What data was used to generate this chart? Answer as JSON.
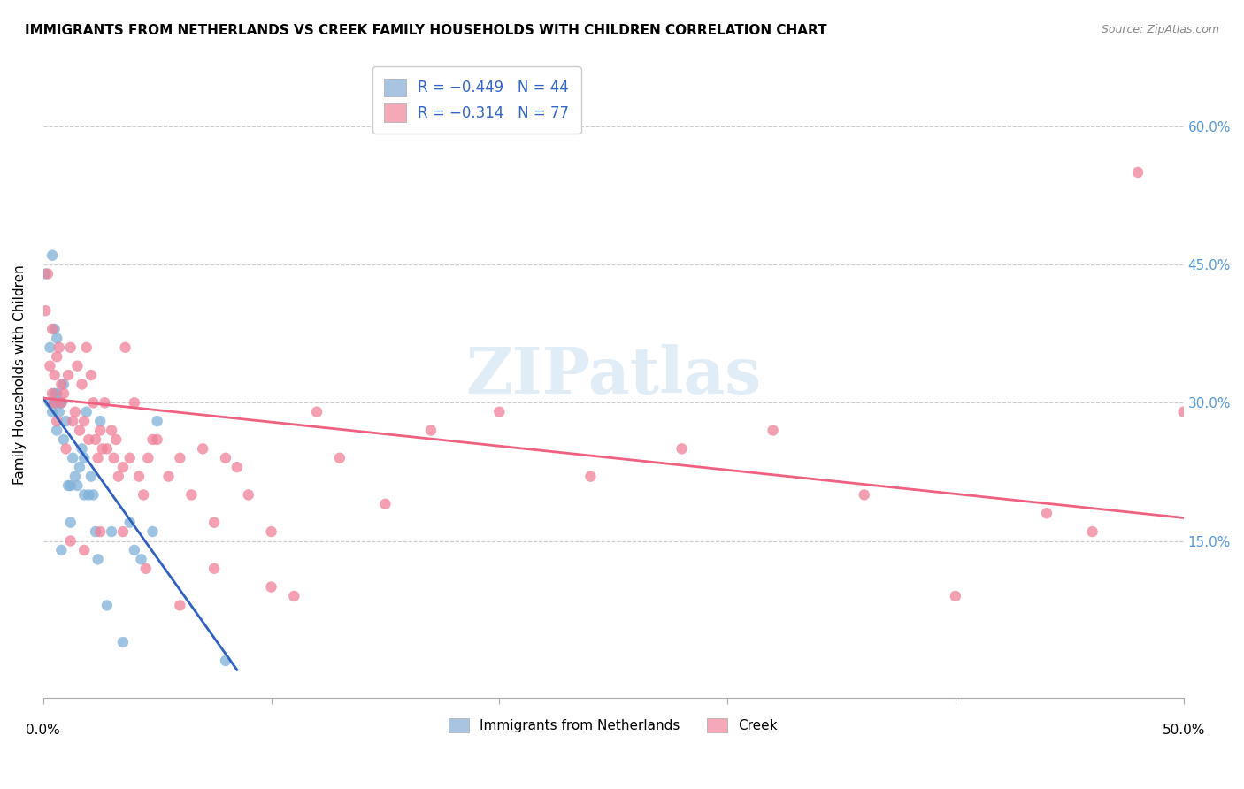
{
  "title": "IMMIGRANTS FROM NETHERLANDS VS CREEK FAMILY HOUSEHOLDS WITH CHILDREN CORRELATION CHART",
  "source": "Source: ZipAtlas.com",
  "ylabel": "Family Households with Children",
  "right_yticks": [
    "60.0%",
    "45.0%",
    "30.0%",
    "15.0%"
  ],
  "right_ytick_vals": [
    0.6,
    0.45,
    0.3,
    0.15
  ],
  "xlim": [
    0.0,
    0.5
  ],
  "ylim": [
    -0.02,
    0.68
  ],
  "legend_blue_label": "R = −0.449   N = 44",
  "legend_pink_label": "R = −0.314   N = 77",
  "legend_blue_color": "#a8c4e0",
  "legend_pink_color": "#f4a8b8",
  "scatter_blue_color": "#7fb0d8",
  "scatter_pink_color": "#f08098",
  "trend_blue_color": "#3060c0",
  "trend_pink_color": "#f06080",
  "watermark": "ZIPatlas",
  "bottom_legend_blue": "Immigrants from Netherlands",
  "bottom_legend_pink": "Creek",
  "blue_points_x": [
    0.001,
    0.003,
    0.003,
    0.004,
    0.004,
    0.005,
    0.005,
    0.005,
    0.006,
    0.006,
    0.006,
    0.007,
    0.007,
    0.008,
    0.008,
    0.009,
    0.009,
    0.01,
    0.011,
    0.012,
    0.012,
    0.013,
    0.014,
    0.015,
    0.016,
    0.017,
    0.018,
    0.018,
    0.019,
    0.02,
    0.021,
    0.022,
    0.023,
    0.024,
    0.025,
    0.028,
    0.03,
    0.035,
    0.038,
    0.04,
    0.043,
    0.048,
    0.05,
    0.08
  ],
  "blue_points_y": [
    0.44,
    0.3,
    0.36,
    0.29,
    0.46,
    0.3,
    0.31,
    0.38,
    0.37,
    0.27,
    0.31,
    0.3,
    0.29,
    0.14,
    0.3,
    0.32,
    0.26,
    0.28,
    0.21,
    0.21,
    0.17,
    0.24,
    0.22,
    0.21,
    0.23,
    0.25,
    0.2,
    0.24,
    0.29,
    0.2,
    0.22,
    0.2,
    0.16,
    0.13,
    0.28,
    0.08,
    0.16,
    0.04,
    0.17,
    0.14,
    0.13,
    0.16,
    0.28,
    0.02
  ],
  "pink_points_x": [
    0.001,
    0.002,
    0.003,
    0.004,
    0.004,
    0.005,
    0.005,
    0.006,
    0.006,
    0.007,
    0.008,
    0.008,
    0.009,
    0.01,
    0.011,
    0.012,
    0.013,
    0.014,
    0.015,
    0.016,
    0.017,
    0.018,
    0.019,
    0.02,
    0.021,
    0.022,
    0.023,
    0.024,
    0.025,
    0.026,
    0.027,
    0.028,
    0.03,
    0.031,
    0.032,
    0.033,
    0.035,
    0.036,
    0.038,
    0.04,
    0.042,
    0.044,
    0.046,
    0.048,
    0.05,
    0.055,
    0.06,
    0.065,
    0.07,
    0.075,
    0.08,
    0.085,
    0.09,
    0.1,
    0.11,
    0.12,
    0.13,
    0.15,
    0.17,
    0.2,
    0.24,
    0.28,
    0.32,
    0.36,
    0.4,
    0.44,
    0.46,
    0.48,
    0.5,
    0.012,
    0.018,
    0.025,
    0.035,
    0.045,
    0.06,
    0.075,
    0.1
  ],
  "pink_points_y": [
    0.4,
    0.44,
    0.34,
    0.31,
    0.38,
    0.3,
    0.33,
    0.28,
    0.35,
    0.36,
    0.3,
    0.32,
    0.31,
    0.25,
    0.33,
    0.36,
    0.28,
    0.29,
    0.34,
    0.27,
    0.32,
    0.28,
    0.36,
    0.26,
    0.33,
    0.3,
    0.26,
    0.24,
    0.27,
    0.25,
    0.3,
    0.25,
    0.27,
    0.24,
    0.26,
    0.22,
    0.23,
    0.36,
    0.24,
    0.3,
    0.22,
    0.2,
    0.24,
    0.26,
    0.26,
    0.22,
    0.24,
    0.2,
    0.25,
    0.17,
    0.24,
    0.23,
    0.2,
    0.1,
    0.09,
    0.29,
    0.24,
    0.19,
    0.27,
    0.29,
    0.22,
    0.25,
    0.27,
    0.2,
    0.09,
    0.18,
    0.16,
    0.55,
    0.29,
    0.15,
    0.14,
    0.16,
    0.16,
    0.12,
    0.08,
    0.12,
    0.16
  ],
  "blue_trend_x": [
    0.0,
    0.085
  ],
  "blue_trend_y": [
    0.305,
    0.01
  ],
  "pink_trend_x": [
    0.0,
    0.5
  ],
  "pink_trend_y": [
    0.305,
    0.175
  ]
}
